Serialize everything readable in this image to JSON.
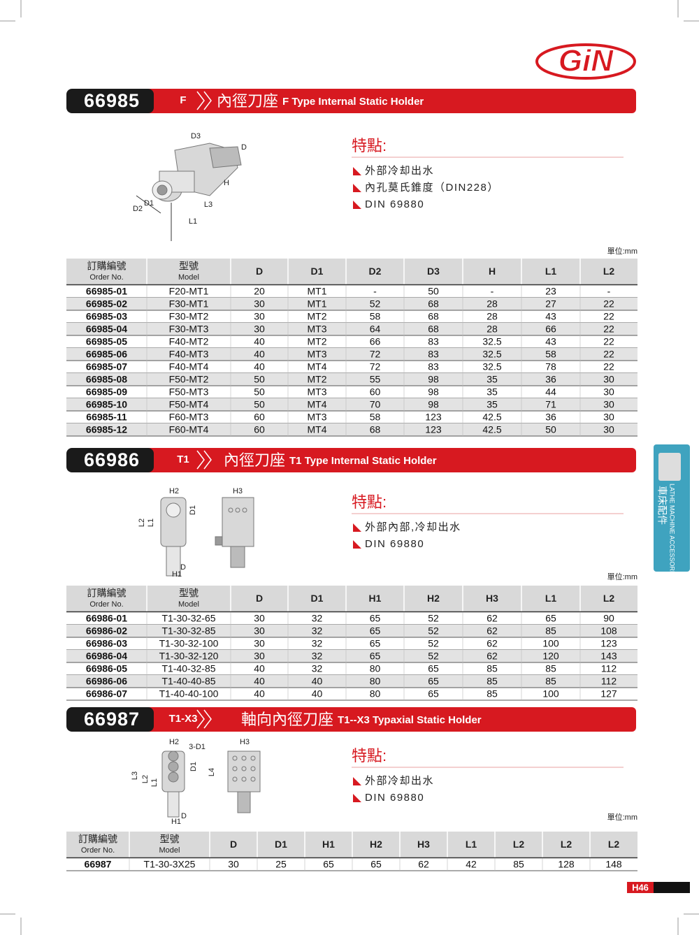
{
  "logo": "GiN",
  "side_tab": {
    "zh": "車床配件",
    "en": "LATHE MACHINE ACCESSORIES"
  },
  "page_number": "H46",
  "sections": [
    {
      "code": "66985",
      "tag": "F",
      "title_zh": "內徑刀座",
      "title_en": "F Type Internal Static Holder",
      "features_heading": "特點:",
      "features": [
        "外部冷却出水",
        "內孔莫氏錐度（DIN228）",
        "DIN 69880"
      ],
      "diagram_labels": [
        "D3",
        "D",
        "H",
        "D1",
        "D2",
        "L3",
        "L1"
      ],
      "unit": "單位:mm",
      "table": {
        "header": [
          "訂購編號",
          "型號",
          "D",
          "D1",
          "D2",
          "D3",
          "H",
          "L1",
          "L2"
        ],
        "header_en": [
          "Order No.",
          "Model"
        ],
        "rows": [
          [
            "66985-01",
            "F20-MT1",
            "20",
            "MT1",
            "-",
            "50",
            "-",
            "23",
            "-"
          ],
          [
            "66985-02",
            "F30-MT1",
            "30",
            "MT1",
            "52",
            "68",
            "28",
            "27",
            "22"
          ],
          [
            "66985-03",
            "F30-MT2",
            "30",
            "MT2",
            "58",
            "68",
            "28",
            "43",
            "22"
          ],
          [
            "66985-04",
            "F30-MT3",
            "30",
            "MT3",
            "64",
            "68",
            "28",
            "66",
            "22"
          ],
          [
            "66985-05",
            "F40-MT2",
            "40",
            "MT2",
            "66",
            "83",
            "32.5",
            "43",
            "22"
          ],
          [
            "66985-06",
            "F40-MT3",
            "40",
            "MT3",
            "72",
            "83",
            "32.5",
            "58",
            "22"
          ],
          [
            "66985-07",
            "F40-MT4",
            "40",
            "MT4",
            "72",
            "83",
            "32.5",
            "78",
            "22"
          ],
          [
            "66985-08",
            "F50-MT2",
            "50",
            "MT2",
            "55",
            "98",
            "35",
            "36",
            "30"
          ],
          [
            "66985-09",
            "F50-MT3",
            "50",
            "MT3",
            "60",
            "98",
            "35",
            "44",
            "30"
          ],
          [
            "66985-10",
            "F50-MT4",
            "50",
            "MT4",
            "70",
            "98",
            "35",
            "71",
            "30"
          ],
          [
            "66985-11",
            "F60-MT3",
            "60",
            "MT3",
            "58",
            "123",
            "42.5",
            "36",
            "30"
          ],
          [
            "66985-12",
            "F60-MT4",
            "60",
            "MT4",
            "68",
            "123",
            "42.5",
            "50",
            "30"
          ]
        ]
      }
    },
    {
      "code": "66986",
      "tag": "T1",
      "title_zh": "內徑刀座",
      "title_en": "T1 Type Internal Static Holder",
      "features_heading": "特點:",
      "features": [
        "外部內部,冷却出水",
        "DIN 69880"
      ],
      "diagram_labels": [
        "H2",
        "D1",
        "L2",
        "L1",
        "D",
        "H1",
        "H3"
      ],
      "unit": "單位:mm",
      "table": {
        "header": [
          "訂購編號",
          "型號",
          "D",
          "D1",
          "H1",
          "H2",
          "H3",
          "L1",
          "L2"
        ],
        "header_en": [
          "Order No.",
          "Model"
        ],
        "rows": [
          [
            "66986-01",
            "T1-30-32-65",
            "30",
            "32",
            "65",
            "52",
            "62",
            "65",
            "90"
          ],
          [
            "66986-02",
            "T1-30-32-85",
            "30",
            "32",
            "65",
            "52",
            "62",
            "85",
            "108"
          ],
          [
            "66986-03",
            "T1-30-32-100",
            "30",
            "32",
            "65",
            "52",
            "62",
            "100",
            "123"
          ],
          [
            "66986-04",
            "T1-30-32-120",
            "30",
            "32",
            "65",
            "52",
            "62",
            "120",
            "143"
          ],
          [
            "66986-05",
            "T1-40-32-85",
            "40",
            "32",
            "80",
            "65",
            "85",
            "85",
            "112"
          ],
          [
            "66986-06",
            "T1-40-40-85",
            "40",
            "40",
            "80",
            "65",
            "85",
            "85",
            "112"
          ],
          [
            "66986-07",
            "T1-40-40-100",
            "40",
            "40",
            "80",
            "65",
            "85",
            "100",
            "127"
          ]
        ]
      }
    },
    {
      "code": "66987",
      "tag": "T1-X3",
      "title_zh": "軸向內徑刀座",
      "title_en": "T1--X3 Typaxial Static Holder",
      "features_heading": "特點:",
      "features": [
        "外部冷却出水",
        "DIN 69880"
      ],
      "diagram_labels": [
        "H2",
        "3-D1",
        "D1",
        "L3",
        "L2",
        "L1",
        "H1",
        "D",
        "H3",
        "L4"
      ],
      "unit": "單位:mm",
      "table": {
        "header": [
          "訂購編號",
          "型號",
          "D",
          "D1",
          "H1",
          "H2",
          "H3",
          "L1",
          "L2",
          "L2",
          "L2"
        ],
        "header_en": [
          "Order No.",
          "Model"
        ],
        "rows": [
          [
            "66987",
            "T1-30-3X25",
            "30",
            "25",
            "65",
            "65",
            "62",
            "42",
            "85",
            "128",
            "148"
          ]
        ]
      }
    }
  ]
}
